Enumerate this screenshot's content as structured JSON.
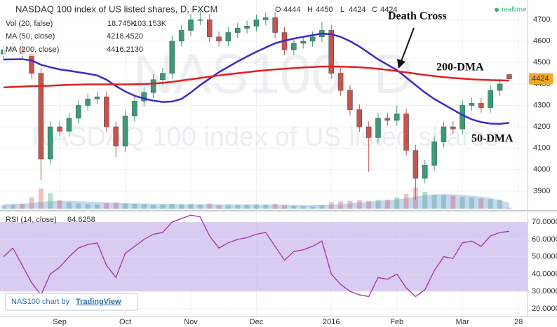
{
  "chart_data": [
    {
      "type": "candlestick",
      "title": "NASDAQ 100 index of US listed shares, D, FXCM",
      "ohlc_labels": [
        "O",
        "H",
        "L",
        "C"
      ],
      "status": "realtime",
      "watermark": "NAS100, D",
      "watermark_subtitle": "NASDAQ 100 index of US listed shares",
      "categories": [
        null,
        null,
        null,
        null,
        null,
        null,
        "Sep",
        null,
        null,
        null,
        null,
        null,
        null,
        "Oct",
        null,
        null,
        null,
        null,
        null,
        null,
        "Nov",
        null,
        null,
        null,
        null,
        null,
        null,
        "Dec",
        null,
        null,
        null,
        null,
        null,
        null,
        null,
        "2016",
        null,
        null,
        null,
        null,
        null,
        null,
        "Feb",
        null,
        null,
        null,
        null,
        null,
        null,
        "Mar",
        null,
        null,
        null,
        null,
        null,
        "28"
      ],
      "open": [
        4540,
        4560,
        4570,
        4540,
        4450,
        4050,
        4200,
        4180,
        4240,
        4300,
        4330,
        4340,
        4200,
        4110,
        4250,
        4320,
        4360,
        4420,
        4450,
        4600,
        4650,
        4700,
        4700,
        4620,
        4600,
        4640,
        4660,
        4670,
        4700,
        4710,
        4640,
        4560,
        4590,
        4600,
        4620,
        4650,
        4450,
        4370,
        4280,
        4200,
        4150,
        4240,
        4230,
        4260,
        4090,
        3960,
        4020,
        4130,
        4200,
        4190,
        4300,
        4310,
        4290,
        4370,
        4444,
        null
      ],
      "high": [
        4585,
        4595,
        4595,
        4565,
        4475,
        4225,
        4225,
        4265,
        4325,
        4355,
        4365,
        4365,
        4225,
        4275,
        4345,
        4385,
        4445,
        4475,
        4625,
        4675,
        4725,
        4740,
        4725,
        4645,
        4665,
        4685,
        4695,
        4725,
        4735,
        4735,
        4665,
        4615,
        4625,
        4645,
        4690,
        4675,
        4475,
        4395,
        4305,
        4225,
        4265,
        4265,
        4300,
        4285,
        4115,
        4045,
        4155,
        4225,
        4225,
        4325,
        4335,
        4335,
        4395,
        4425,
        4450,
        null
      ],
      "low": [
        4515,
        4535,
        4515,
        4425,
        3950,
        4025,
        4155,
        4155,
        4215,
        4275,
        4305,
        4175,
        4060,
        4085,
        4225,
        4295,
        4335,
        4395,
        4425,
        4575,
        4625,
        4675,
        4595,
        4575,
        4575,
        4615,
        4635,
        4645,
        4675,
        4615,
        4535,
        4535,
        4565,
        4575,
        4595,
        4425,
        4345,
        4255,
        4175,
        3990,
        4125,
        4205,
        4205,
        4065,
        3860,
        3935,
        3995,
        4105,
        4165,
        4165,
        4275,
        4265,
        4265,
        4345,
        4424,
        null
      ],
      "close": [
        4560,
        4570,
        4540,
        4450,
        4050,
        4200,
        4180,
        4240,
        4300,
        4330,
        4340,
        4200,
        4110,
        4250,
        4320,
        4360,
        4420,
        4450,
        4600,
        4650,
        4700,
        4700,
        4620,
        4600,
        4640,
        4660,
        4670,
        4700,
        4710,
        4640,
        4560,
        4590,
        4600,
        4620,
        4650,
        4450,
        4370,
        4280,
        4200,
        4150,
        4240,
        4230,
        4260,
        4090,
        3960,
        4020,
        4130,
        4200,
        4190,
        4300,
        4310,
        4290,
        4370,
        4400,
        4424,
        null
      ],
      "up_color": "#3d9a74",
      "down_color": "#c9534a",
      "ylim": [
        3818,
        4792
      ],
      "yticks": [
        3900,
        4000,
        4100,
        4200,
        4300,
        4400,
        4500,
        4600,
        4700
      ],
      "grid": true,
      "overlays": [
        {
          "name": "MA (50, close)",
          "color": "#3b2bc9",
          "values": [
            4514,
            4515,
            4516,
            4510,
            4490,
            4478,
            4468,
            4462,
            4455,
            4448,
            4440,
            4420,
            4390,
            4365,
            4345,
            4332,
            4322,
            4316,
            4318,
            4330,
            4360,
            4395,
            4425,
            4455,
            4480,
            4505,
            4528,
            4550,
            4570,
            4590,
            4602,
            4612,
            4620,
            4628,
            4635,
            4632,
            4620,
            4600,
            4575,
            4545,
            4515,
            4490,
            4465,
            4430,
            4395,
            4360,
            4330,
            4305,
            4280,
            4255,
            4235,
            4222,
            4215,
            4214,
            4218.452,
            null
          ],
          "value_labels": [
            null,
            null,
            null,
            null,
            null,
            null,
            null,
            null,
            null,
            null,
            null,
            null,
            null,
            null,
            null,
            null,
            null,
            null,
            null,
            null,
            null,
            null,
            null,
            null,
            null,
            null,
            null,
            null,
            null,
            null,
            null,
            null,
            null,
            null,
            null,
            null,
            null,
            null,
            null,
            null,
            null,
            null,
            null,
            null,
            null,
            null,
            null,
            null,
            null,
            null,
            null,
            null,
            null,
            null,
            "4218.4520",
            null
          ]
        },
        {
          "name": "MA (200, close)",
          "color": "#e3201f",
          "values": [
            4384,
            4386,
            4388,
            4390,
            4391,
            4392,
            4394,
            4396,
            4397,
            4398,
            4398,
            4398,
            4398,
            4398,
            4399,
            4400,
            4402,
            4405,
            4410,
            4416,
            4422,
            4428,
            4434,
            4440,
            4445,
            4450,
            4455,
            4460,
            4464,
            4468,
            4471,
            4474,
            4477,
            4479,
            4481,
            4482,
            4481,
            4480,
            4478,
            4475,
            4471,
            4466,
            4460,
            4454,
            4448,
            4442,
            4437,
            4432,
            4428,
            4425,
            4422,
            4420,
            4418,
            4417,
            4416.213,
            null
          ],
          "value_labels": [
            null,
            null,
            null,
            null,
            null,
            null,
            null,
            null,
            null,
            null,
            null,
            null,
            null,
            null,
            null,
            null,
            null,
            null,
            null,
            null,
            null,
            null,
            null,
            null,
            null,
            null,
            null,
            null,
            null,
            null,
            null,
            null,
            null,
            null,
            null,
            null,
            null,
            null,
            null,
            null,
            null,
            null,
            null,
            null,
            null,
            null,
            null,
            null,
            null,
            null,
            null,
            null,
            null,
            null,
            "4416.2130",
            null
          ]
        }
      ],
      "volume": {
        "name": "Vol (20, false)",
        "color": "#d9534f",
        "vlim": [
          0,
          500000
        ],
        "values": [
          60000,
          70000,
          90000,
          200000,
          360000,
          280000,
          150000,
          110000,
          90000,
          80000,
          75000,
          100000,
          110000,
          90000,
          85000,
          80000,
          70000,
          75000,
          90000,
          80000,
          85000,
          70000,
          90000,
          60000,
          70000,
          65000,
          70000,
          80000,
          70000,
          90000,
          60000,
          50000,
          45000,
          40000,
          60000,
          110000,
          130000,
          140000,
          150000,
          140000,
          150000,
          160000,
          200000,
          260000,
          380000,
          300000,
          250000,
          240000,
          230000,
          210000,
          200000,
          180000,
          170000,
          160000,
          18745,
          null
        ],
        "value_labels": [
          null,
          null,
          null,
          null,
          null,
          null,
          null,
          null,
          null,
          null,
          null,
          null,
          null,
          null,
          null,
          null,
          null,
          null,
          null,
          null,
          null,
          null,
          null,
          null,
          null,
          null,
          null,
          null,
          null,
          null,
          null,
          null,
          null,
          null,
          null,
          null,
          null,
          null,
          null,
          null,
          null,
          null,
          null,
          null,
          null,
          null,
          null,
          null,
          null,
          null,
          null,
          null,
          null,
          null,
          "18.745K",
          null
        ],
        "ma": {
          "color": "#2f6fd0",
          "values": [
            80000,
            85000,
            88000,
            100000,
            120000,
            135000,
            140000,
            140000,
            135000,
            125000,
            115000,
            110000,
            105000,
            100000,
            95000,
            90000,
            88000,
            85000,
            84000,
            82000,
            80000,
            80000,
            78000,
            76000,
            75000,
            74000,
            73000,
            72000,
            72000,
            72000,
            70000,
            68000,
            65000,
            62000,
            62000,
            70000,
            80000,
            95000,
            110000,
            125000,
            140000,
            150000,
            165000,
            185000,
            215000,
            240000,
            255000,
            260000,
            255000,
            245000,
            230000,
            215000,
            190000,
            150000,
            103153,
            null
          ],
          "value_labels": [
            null,
            null,
            null,
            null,
            null,
            null,
            null,
            null,
            null,
            null,
            null,
            null,
            null,
            null,
            null,
            null,
            null,
            null,
            null,
            null,
            null,
            null,
            null,
            null,
            null,
            null,
            null,
            null,
            null,
            null,
            null,
            null,
            null,
            null,
            null,
            null,
            null,
            null,
            null,
            null,
            null,
            null,
            null,
            null,
            null,
            null,
            null,
            null,
            null,
            null,
            null,
            null,
            null,
            null,
            "103.153K",
            null
          ]
        }
      },
      "annotations": [
        {
          "text": "Death Cross"
        },
        {
          "text": "200-DMA"
        },
        {
          "text": "50-DMA"
        }
      ],
      "credit": {
        "text": "NAS100 chart by",
        "link": "TradingView"
      }
    },
    {
      "type": "line",
      "name": "RSI (14, close)",
      "color": "#a52fa8",
      "band": [
        30,
        70
      ],
      "band_color": "#c9b6ec",
      "values": [
        50,
        55,
        45,
        35,
        28,
        40,
        44,
        50,
        55,
        57,
        58,
        45,
        38,
        52,
        56,
        60,
        63,
        64,
        70,
        72,
        74,
        73,
        62,
        55,
        58,
        60,
        61,
        63,
        64,
        56,
        48,
        53,
        54,
        56,
        59,
        40,
        34,
        30,
        28,
        27,
        38,
        37,
        40,
        32,
        27,
        31,
        42,
        50,
        49,
        58,
        59,
        56,
        62,
        64,
        64.6258,
        null
      ],
      "ylim": [
        15.5,
        75.3
      ],
      "yticks": [
        {
          "value": 20,
          "label": "20.0000"
        },
        {
          "value": 30,
          "label": "30.0000"
        },
        {
          "value": 40,
          "label": "40.0000"
        },
        {
          "value": 50,
          "label": "50.0000"
        },
        {
          "value": 60,
          "label": "60.0000"
        },
        {
          "value": 70,
          "label": "70.0000"
        }
      ],
      "grid": true
    }
  ]
}
